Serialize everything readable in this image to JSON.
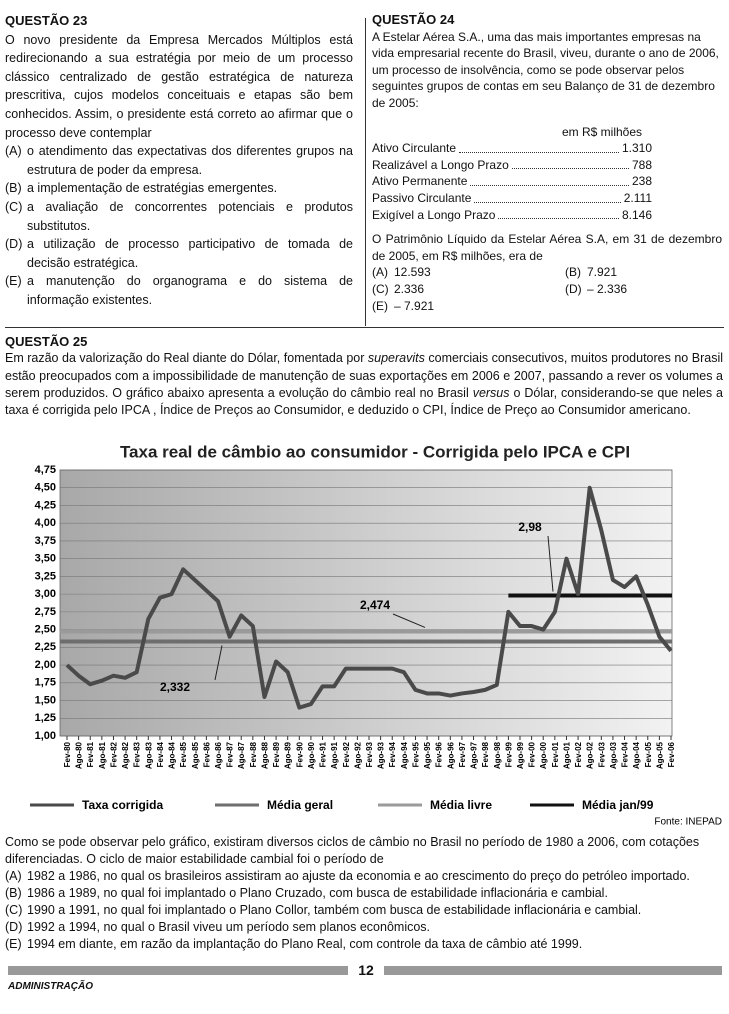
{
  "q23": {
    "heading": "QUESTÃO 23",
    "stem": "O novo presidente da Empresa Mercados Múltiplos está redirecionando a sua estratégia por meio de um processo clássico centralizado de gestão estratégica de natureza prescritiva, cujos modelos conceituais e etapas são bem conhecidos. Assim, o presidente está correto ao afirmar que o processo deve contemplar",
    "options": [
      {
        "letter": "(A)",
        "text": "o atendimento das expectativas dos diferentes grupos na estrutura de poder da empresa."
      },
      {
        "letter": "(B)",
        "text": "a implementação de estratégias emergentes."
      },
      {
        "letter": "(C)",
        "text": "a avaliação de concorrentes potenciais e produtos substitutos."
      },
      {
        "letter": "(D)",
        "text": "a utilização de processo participativo de tomada de decisão estratégica."
      },
      {
        "letter": "(E)",
        "text": "a manutenção do organograma e do sistema de informação existentes."
      }
    ]
  },
  "q24": {
    "heading": "QUESTÃO 24",
    "stem": "A Estelar Aérea S.A., uma das mais importantes empresas na vida empresarial recente do Brasil, viveu, durante o ano de 2006, um processo de insolvência, como se pode observar pelos seguintes grupos de contas em seu Balanço de 31 de dezembro de 2005:",
    "unit": "em R$ milhões",
    "rows": [
      {
        "label": "Ativo Circulante",
        "value": "1.310"
      },
      {
        "label": "Realizável a Longo Prazo",
        "value": "788"
      },
      {
        "label": "Ativo Permanente",
        "value": "238"
      },
      {
        "label": "Passivo Circulante",
        "value": "2.111"
      },
      {
        "label": "Exigível a Longo Prazo",
        "value": "8.146"
      }
    ],
    "question": "O Patrimônio Líquido da Estelar Aérea S.A, em 31 de dezembro de 2005, em R$ milhões, era de",
    "options": [
      {
        "letter": "(A)",
        "text": "12.593"
      },
      {
        "letter": "(B)",
        "text": "7.921"
      },
      {
        "letter": "(C)",
        "text": "2.336"
      },
      {
        "letter": "(D)",
        "text": "– 2.336"
      },
      {
        "letter": "(E)",
        "text": "– 7.921"
      }
    ]
  },
  "q25": {
    "heading": "QUESTÃO 25",
    "intro": [
      "Em razão da valorização do Real diante do Dólar, fomentada por ",
      "superavits",
      " comerciais consecutivos, muitos produtores no Brasil estão preocupados com a impossibilidade de manutenção de suas exportações em 2006 e 2007, passando a rever os volumes a serem produzidos. O gráfico abaixo apresenta a evolução do câmbio real no Brasil ",
      "versus",
      " o Dólar, considerando-se que neles a taxa é corrigida pelo IPCA , Índice de Preços ao Consumidor, e deduzido o CPI, Índice de Preço ao Consumidor americano."
    ],
    "stem": "Como se pode observar pelo gráfico, existiram diversos ciclos de câmbio no Brasil no período de 1980 a 2006, com cotações diferenciadas. O ciclo de maior estabilidade cambial foi o período de",
    "options": [
      {
        "letter": "(A)",
        "text": "1982 a 1986, no qual os brasileiros assistiram ao ajuste da economia e ao crescimento do preço do petróleo importado."
      },
      {
        "letter": "(B)",
        "text": "1986 a 1989, no qual foi implantado o Plano Cruzado, com busca de estabilidade inflacionária e cambial."
      },
      {
        "letter": "(C)",
        "text": "1990 a 1991, no qual foi implantado o Plano Collor, também com busca de estabilidade inflacionária e cambial."
      },
      {
        "letter": "(D)",
        "text": "1992 a 1994, no qual o Brasil viveu um período sem planos econômicos."
      },
      {
        "letter": "(E)",
        "text": "1994 em diante, em razão da implantação do Plano Real, com controle da taxa de câmbio até 1999."
      }
    ]
  },
  "chart_data": {
    "type": "line",
    "title": "Taxa real de câmbio ao consumidor - Corrigida pelo IPCA e CPI",
    "categories": [
      "Fev-80",
      "Ago-80",
      "Fev-81",
      "Ago-81",
      "Fev-82",
      "Ago-82",
      "Fev-83",
      "Ago-83",
      "Fev-84",
      "Ago-84",
      "Fev-85",
      "Ago-85",
      "Fev-86",
      "Ago-86",
      "Fev-87",
      "Ago-87",
      "Fev-88",
      "Ago-88",
      "Fev-89",
      "Ago-89",
      "Fev-90",
      "Ago-90",
      "Fev-91",
      "Ago-91",
      "Fev-92",
      "Ago-92",
      "Fev-93",
      "Ago-93",
      "Fev-94",
      "Ago-94",
      "Fev-95",
      "Ago-95",
      "Fev-96",
      "Ago-96",
      "Fev-97",
      "Ago-97",
      "Fev-98",
      "Ago-98",
      "Fev-99",
      "Ago-99",
      "Fev-00",
      "Ago-00",
      "Fev-01",
      "Ago-01",
      "Fev-02",
      "Ago-02",
      "Fev-03",
      "Ago-03",
      "Fev-04",
      "Ago-04",
      "Fev-05",
      "Ago-05",
      "Fev-06"
    ],
    "series": [
      {
        "name": "Taxa corrigida",
        "color": "#4a4a4a",
        "values": [
          2.0,
          1.85,
          1.73,
          1.78,
          1.85,
          1.82,
          1.9,
          2.65,
          2.95,
          3.0,
          3.35,
          3.2,
          3.05,
          2.9,
          2.4,
          2.7,
          2.55,
          1.55,
          2.05,
          1.9,
          1.4,
          1.45,
          1.7,
          1.7,
          1.95,
          1.95,
          1.95,
          1.95,
          1.95,
          1.9,
          1.65,
          1.6,
          1.6,
          1.57,
          1.6,
          1.62,
          1.65,
          1.72,
          2.75,
          2.55,
          2.55,
          2.5,
          2.75,
          3.5,
          3.0,
          4.5,
          3.9,
          3.2,
          3.1,
          3.25,
          2.85,
          2.4,
          2.2
        ]
      }
    ],
    "reference_lines": [
      {
        "name": "Média geral",
        "value": 2.332,
        "label": "2,332",
        "color": "#6e6e6e"
      },
      {
        "name": "Média livre",
        "value": 2.474,
        "label": "2,474",
        "color": "#9a9a9a"
      },
      {
        "name": "Média jan/99",
        "value": 2.98,
        "label": "2,98",
        "color": "#111111",
        "from": "Fev-99"
      }
    ],
    "ylim": [
      1.0,
      4.75
    ],
    "yticks": [
      {
        "value": 1.0,
        "label": "1,00"
      },
      {
        "value": 1.25,
        "label": "1,25"
      },
      {
        "value": 1.5,
        "label": "1,50"
      },
      {
        "value": 1.75,
        "label": "1,75"
      },
      {
        "value": 2.0,
        "label": "2,00"
      },
      {
        "value": 2.25,
        "label": "2,25"
      },
      {
        "value": 2.5,
        "label": "2,50"
      },
      {
        "value": 2.75,
        "label": "2,75"
      },
      {
        "value": 3.0,
        "label": "3,00"
      },
      {
        "value": 3.25,
        "label": "3,25"
      },
      {
        "value": 3.5,
        "label": "3,50"
      },
      {
        "value": 3.75,
        "label": "3,75"
      },
      {
        "value": 4.0,
        "label": "4,00"
      },
      {
        "value": 4.25,
        "label": "4,25"
      },
      {
        "value": 4.5,
        "label": "4,50"
      },
      {
        "value": 4.75,
        "label": "4,75"
      }
    ],
    "grid": true,
    "source": "Fonte: INEPAD"
  },
  "footer": {
    "page": "12",
    "section": "ADMINISTRAÇÃO"
  }
}
